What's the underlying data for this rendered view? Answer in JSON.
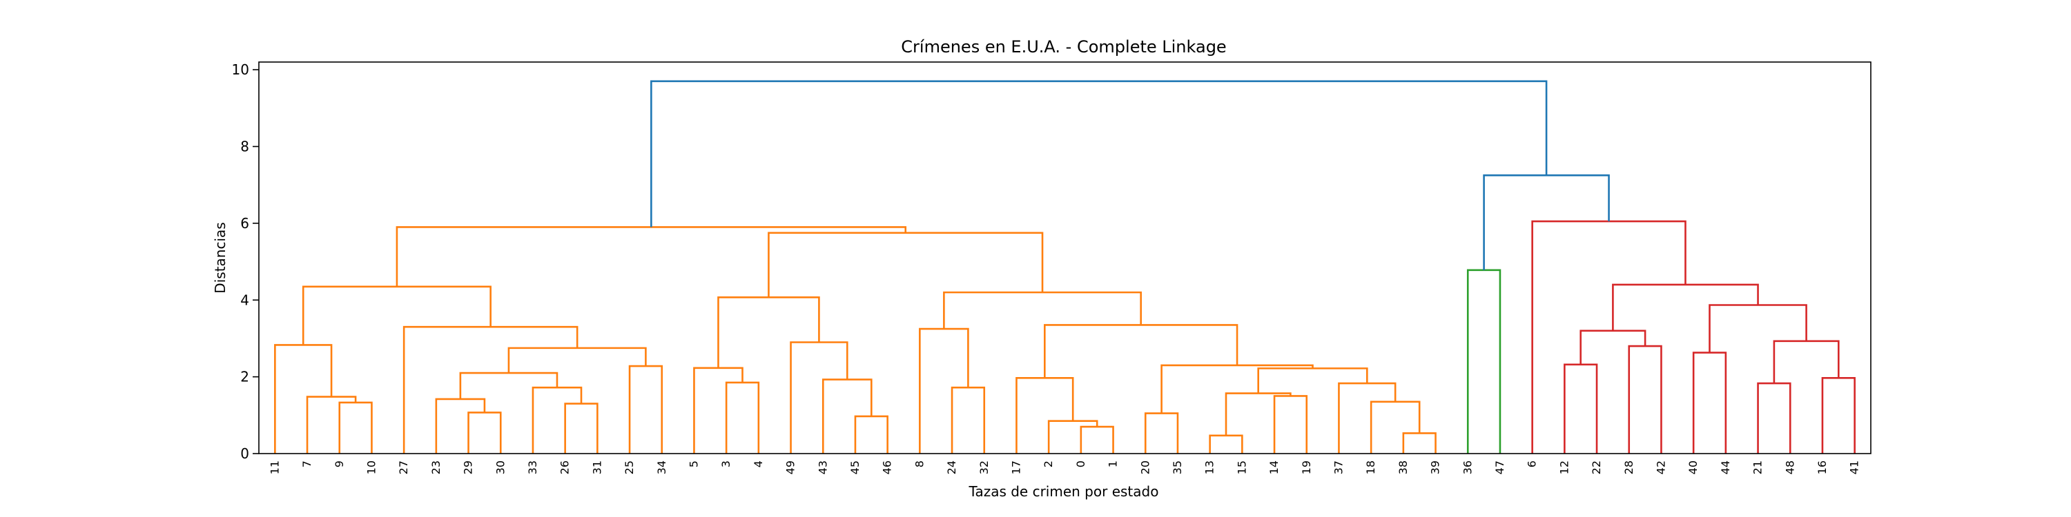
{
  "chart_data": {
    "type": "dendrogram",
    "title": "Crímenes en E.U.A. - Complete Linkage",
    "xlabel": "Tazas de crimen por estado",
    "ylabel": "Distancias",
    "ylim": [
      0,
      10.2
    ],
    "yticks": [
      0,
      2,
      4,
      6,
      8,
      10
    ],
    "grid": false,
    "leaves": [
      "11",
      "7",
      "9",
      "10",
      "27",
      "23",
      "29",
      "30",
      "33",
      "26",
      "31",
      "25",
      "34",
      "5",
      "3",
      "4",
      "49",
      "43",
      "45",
      "46",
      "8",
      "24",
      "32",
      "17",
      "2",
      "0",
      "1",
      "20",
      "35",
      "13",
      "15",
      "14",
      "19",
      "37",
      "18",
      "38",
      "39",
      "36",
      "47",
      "6",
      "12",
      "22",
      "28",
      "42",
      "40",
      "44",
      "21",
      "48",
      "16",
      "41"
    ],
    "tree": {
      "h": 9.7,
      "c": "#1f77b4",
      "ch": [
        {
          "h": 5.9,
          "c": "#ff7f0e",
          "ch": [
            {
              "h": 4.35,
              "c": "#ff7f0e",
              "ch": [
                {
                  "h": 2.83,
                  "c": "#ff7f0e",
                  "ch": [
                    {
                      "l": "11"
                    },
                    {
                      "h": 1.48,
                      "c": "#ff7f0e",
                      "ch": [
                        {
                          "l": "7"
                        },
                        {
                          "h": 1.33,
                          "c": "#ff7f0e",
                          "ch": [
                            {
                              "l": "9"
                            },
                            {
                              "l": "10"
                            }
                          ]
                        }
                      ]
                    }
                  ]
                },
                {
                  "h": 3.3,
                  "c": "#ff7f0e",
                  "ch": [
                    {
                      "l": "27"
                    },
                    {
                      "h": 2.75,
                      "c": "#ff7f0e",
                      "ch": [
                        {
                          "h": 2.1,
                          "c": "#ff7f0e",
                          "ch": [
                            {
                              "h": 1.42,
                              "c": "#ff7f0e",
                              "ch": [
                                {
                                  "l": "23"
                                },
                                {
                                  "h": 1.07,
                                  "c": "#ff7f0e",
                                  "ch": [
                                    {
                                      "l": "29"
                                    },
                                    {
                                      "l": "30"
                                    }
                                  ]
                                }
                              ]
                            },
                            {
                              "h": 1.72,
                              "c": "#ff7f0e",
                              "ch": [
                                {
                                  "l": "33"
                                },
                                {
                                  "h": 1.3,
                                  "c": "#ff7f0e",
                                  "ch": [
                                    {
                                      "l": "26"
                                    },
                                    {
                                      "l": "31"
                                    }
                                  ]
                                }
                              ]
                            }
                          ]
                        },
                        {
                          "h": 2.28,
                          "c": "#ff7f0e",
                          "ch": [
                            {
                              "l": "25"
                            },
                            {
                              "l": "34"
                            }
                          ]
                        }
                      ]
                    }
                  ]
                }
              ]
            },
            {
              "h": 5.75,
              "c": "#ff7f0e",
              "ch": [
                {
                  "h": 4.07,
                  "c": "#ff7f0e",
                  "ch": [
                    {
                      "h": 2.23,
                      "c": "#ff7f0e",
                      "ch": [
                        {
                          "l": "5"
                        },
                        {
                          "h": 1.85,
                          "c": "#ff7f0e",
                          "ch": [
                            {
                              "l": "3"
                            },
                            {
                              "l": "4"
                            }
                          ]
                        }
                      ]
                    },
                    {
                      "h": 2.9,
                      "c": "#ff7f0e",
                      "ch": [
                        {
                          "l": "49"
                        },
                        {
                          "h": 1.93,
                          "c": "#ff7f0e",
                          "ch": [
                            {
                              "l": "43"
                            },
                            {
                              "h": 0.97,
                              "c": "#ff7f0e",
                              "ch": [
                                {
                                  "l": "45"
                                },
                                {
                                  "l": "46"
                                }
                              ]
                            }
                          ]
                        }
                      ]
                    }
                  ]
                },
                {
                  "h": 4.2,
                  "c": "#ff7f0e",
                  "ch": [
                    {
                      "h": 3.25,
                      "c": "#ff7f0e",
                      "ch": [
                        {
                          "l": "8"
                        },
                        {
                          "h": 1.72,
                          "c": "#ff7f0e",
                          "ch": [
                            {
                              "l": "24"
                            },
                            {
                              "l": "32"
                            }
                          ]
                        }
                      ]
                    },
                    {
                      "h": 3.35,
                      "c": "#ff7f0e",
                      "ch": [
                        {
                          "h": 1.97,
                          "c": "#ff7f0e",
                          "ch": [
                            {
                              "l": "17"
                            },
                            {
                              "h": 0.85,
                              "c": "#ff7f0e",
                              "ch": [
                                {
                                  "l": "2"
                                },
                                {
                                  "h": 0.7,
                                  "c": "#ff7f0e",
                                  "ch": [
                                    {
                                      "l": "0"
                                    },
                                    {
                                      "l": "1"
                                    }
                                  ]
                                }
                              ]
                            }
                          ]
                        },
                        {
                          "h": 2.3,
                          "c": "#ff7f0e",
                          "ch": [
                            {
                              "h": 1.05,
                              "c": "#ff7f0e",
                              "ch": [
                                {
                                  "l": "20"
                                },
                                {
                                  "l": "35"
                                }
                              ]
                            },
                            {
                              "h": 2.22,
                              "c": "#ff7f0e",
                              "ch": [
                                {
                                  "h": 1.57,
                                  "c": "#ff7f0e",
                                  "ch": [
                                    {
                                      "h": 0.47,
                                      "c": "#ff7f0e",
                                      "ch": [
                                        {
                                          "l": "13"
                                        },
                                        {
                                          "l": "15"
                                        }
                                      ]
                                    },
                                    {
                                      "h": 1.5,
                                      "c": "#ff7f0e",
                                      "ch": [
                                        {
                                          "l": "14"
                                        },
                                        {
                                          "l": "19"
                                        }
                                      ]
                                    }
                                  ]
                                },
                                {
                                  "h": 1.83,
                                  "c": "#ff7f0e",
                                  "ch": [
                                    {
                                      "l": "37"
                                    },
                                    {
                                      "h": 1.35,
                                      "c": "#ff7f0e",
                                      "ch": [
                                        {
                                          "l": "18"
                                        },
                                        {
                                          "h": 0.53,
                                          "c": "#ff7f0e",
                                          "ch": [
                                            {
                                              "l": "38"
                                            },
                                            {
                                              "l": "39"
                                            }
                                          ]
                                        }
                                      ]
                                    }
                                  ]
                                }
                              ]
                            }
                          ]
                        }
                      ]
                    }
                  ]
                }
              ]
            }
          ]
        },
        {
          "h": 7.25,
          "c": "#1f77b4",
          "ch": [
            {
              "h": 4.78,
              "c": "#2ca02c",
              "ch": [
                {
                  "l": "36"
                },
                {
                  "l": "47"
                }
              ]
            },
            {
              "h": 6.05,
              "c": "#d62728",
              "ch": [
                {
                  "l": "6"
                },
                {
                  "h": 4.4,
                  "c": "#d62728",
                  "ch": [
                    {
                      "h": 3.2,
                      "c": "#d62728",
                      "ch": [
                        {
                          "h": 2.32,
                          "c": "#d62728",
                          "ch": [
                            {
                              "l": "12"
                            },
                            {
                              "l": "22"
                            }
                          ]
                        },
                        {
                          "h": 2.8,
                          "c": "#d62728",
                          "ch": [
                            {
                              "l": "28"
                            },
                            {
                              "l": "42"
                            }
                          ]
                        }
                      ]
                    },
                    {
                      "h": 3.87,
                      "c": "#d62728",
                      "ch": [
                        {
                          "h": 2.63,
                          "c": "#d62728",
                          "ch": [
                            {
                              "l": "40"
                            },
                            {
                              "l": "44"
                            }
                          ]
                        },
                        {
                          "h": 2.93,
                          "c": "#d62728",
                          "ch": [
                            {
                              "h": 1.83,
                              "c": "#d62728",
                              "ch": [
                                {
                                  "l": "21"
                                },
                                {
                                  "l": "48"
                                }
                              ]
                            },
                            {
                              "h": 1.97,
                              "c": "#d62728",
                              "ch": [
                                {
                                  "l": "16"
                                },
                                {
                                  "l": "41"
                                }
                              ]
                            }
                          ]
                        }
                      ]
                    }
                  ]
                }
              ]
            }
          ]
        }
      ]
    }
  }
}
